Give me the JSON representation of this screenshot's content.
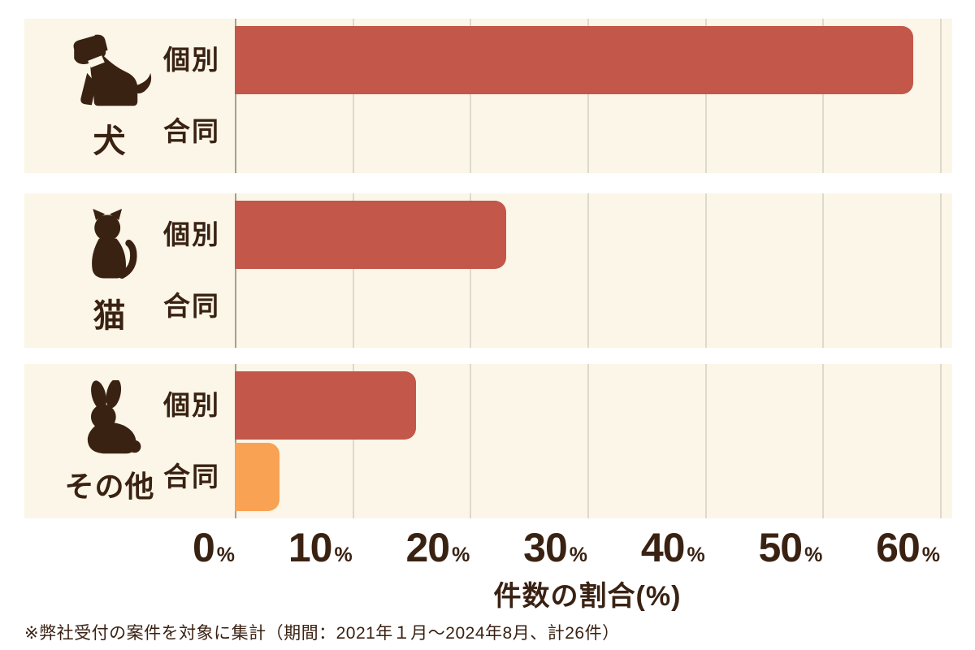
{
  "colors": {
    "page_background": "#ffffff",
    "panel_background": "#fbf6e7",
    "bar_individual": "#c2574a",
    "bar_joint": "#f9a254",
    "text": "#3a2213",
    "gridline": "#ddd9cb",
    "axis_zero_line": "#a3a094"
  },
  "chart_data": {
    "type": "bar",
    "orientation": "horizontal",
    "xlabel": "件数の割合(%)",
    "xlim": [
      0,
      60
    ],
    "x_ticks": [
      "0",
      "10",
      "20",
      "30",
      "40",
      "50",
      "60"
    ],
    "tick_suffix": "%",
    "grid": true,
    "series_names": [
      "個別",
      "合同"
    ],
    "series_colors": [
      "#c2574a",
      "#f9a254"
    ],
    "groups": [
      {
        "category": "犬",
        "icon": "dog-icon",
        "values": [
          57.7,
          0
        ]
      },
      {
        "category": "猫",
        "icon": "cat-icon",
        "values": [
          23.1,
          0
        ]
      },
      {
        "category": "その他",
        "icon": "rabbit-icon",
        "values": [
          15.4,
          3.8
        ]
      }
    ],
    "note": "※弊社受付の案件を対象に集計（期間：2021年１月～2024年8月、計26件）"
  }
}
